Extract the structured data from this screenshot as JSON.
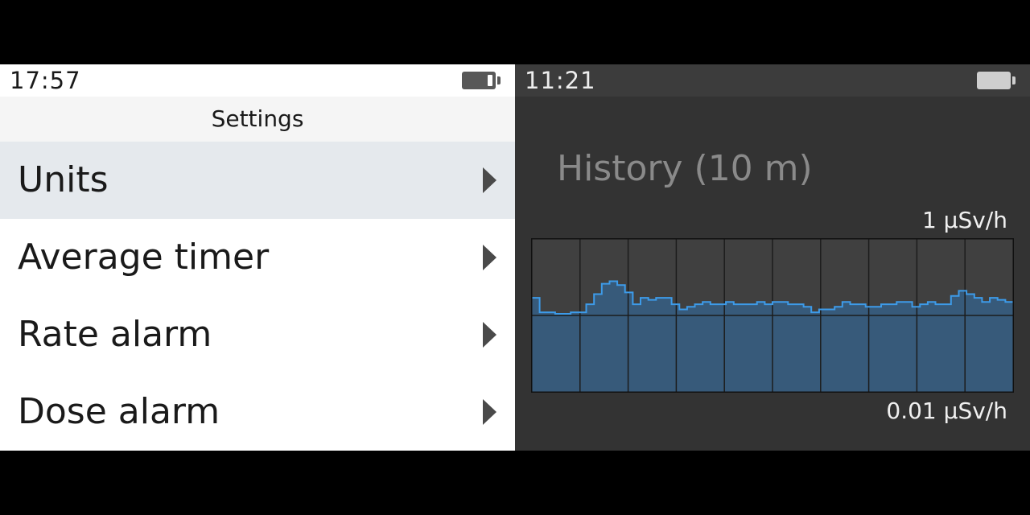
{
  "left_screen": {
    "status": {
      "time": "17:57",
      "battery_icon": "battery-icon"
    },
    "title": "Settings",
    "menu": [
      {
        "label": "Units",
        "selected": true,
        "icon": "chevron-right-icon"
      },
      {
        "label": "Average timer",
        "selected": false,
        "icon": "chevron-right-icon"
      },
      {
        "label": "Rate alarm",
        "selected": false,
        "icon": "chevron-right-icon"
      },
      {
        "label": "Dose alarm",
        "selected": false,
        "icon": "chevron-right-icon"
      }
    ]
  },
  "right_screen": {
    "status": {
      "time": "11:21",
      "battery_icon": "battery-icon"
    },
    "title": "History (10 m)",
    "scale_max_label": "1 µSv/h",
    "scale_min_label": "0.01 µSv/h"
  },
  "colors": {
    "selected_row": "#e5e9ed",
    "chart_line": "#3d9be9",
    "chart_fill": "#375a7a",
    "chart_bg": "#404040"
  },
  "chart_data": {
    "type": "area",
    "title": "History (10 m)",
    "y_scale": "log",
    "ylim": [
      0.01,
      1
    ],
    "y_tick_labels": [
      "1 µSv/h",
      "0.01 µSv/h"
    ],
    "x_divisions": 10,
    "grid": true,
    "values": [
      0.17,
      0.11,
      0.11,
      0.105,
      0.105,
      0.11,
      0.11,
      0.14,
      0.19,
      0.26,
      0.28,
      0.25,
      0.2,
      0.14,
      0.17,
      0.16,
      0.17,
      0.17,
      0.14,
      0.12,
      0.13,
      0.14,
      0.15,
      0.14,
      0.14,
      0.15,
      0.14,
      0.14,
      0.14,
      0.15,
      0.14,
      0.15,
      0.15,
      0.14,
      0.14,
      0.13,
      0.11,
      0.12,
      0.12,
      0.13,
      0.15,
      0.14,
      0.14,
      0.13,
      0.13,
      0.14,
      0.14,
      0.15,
      0.15,
      0.13,
      0.14,
      0.15,
      0.14,
      0.14,
      0.18,
      0.21,
      0.19,
      0.17,
      0.15,
      0.17,
      0.16,
      0.15
    ]
  }
}
